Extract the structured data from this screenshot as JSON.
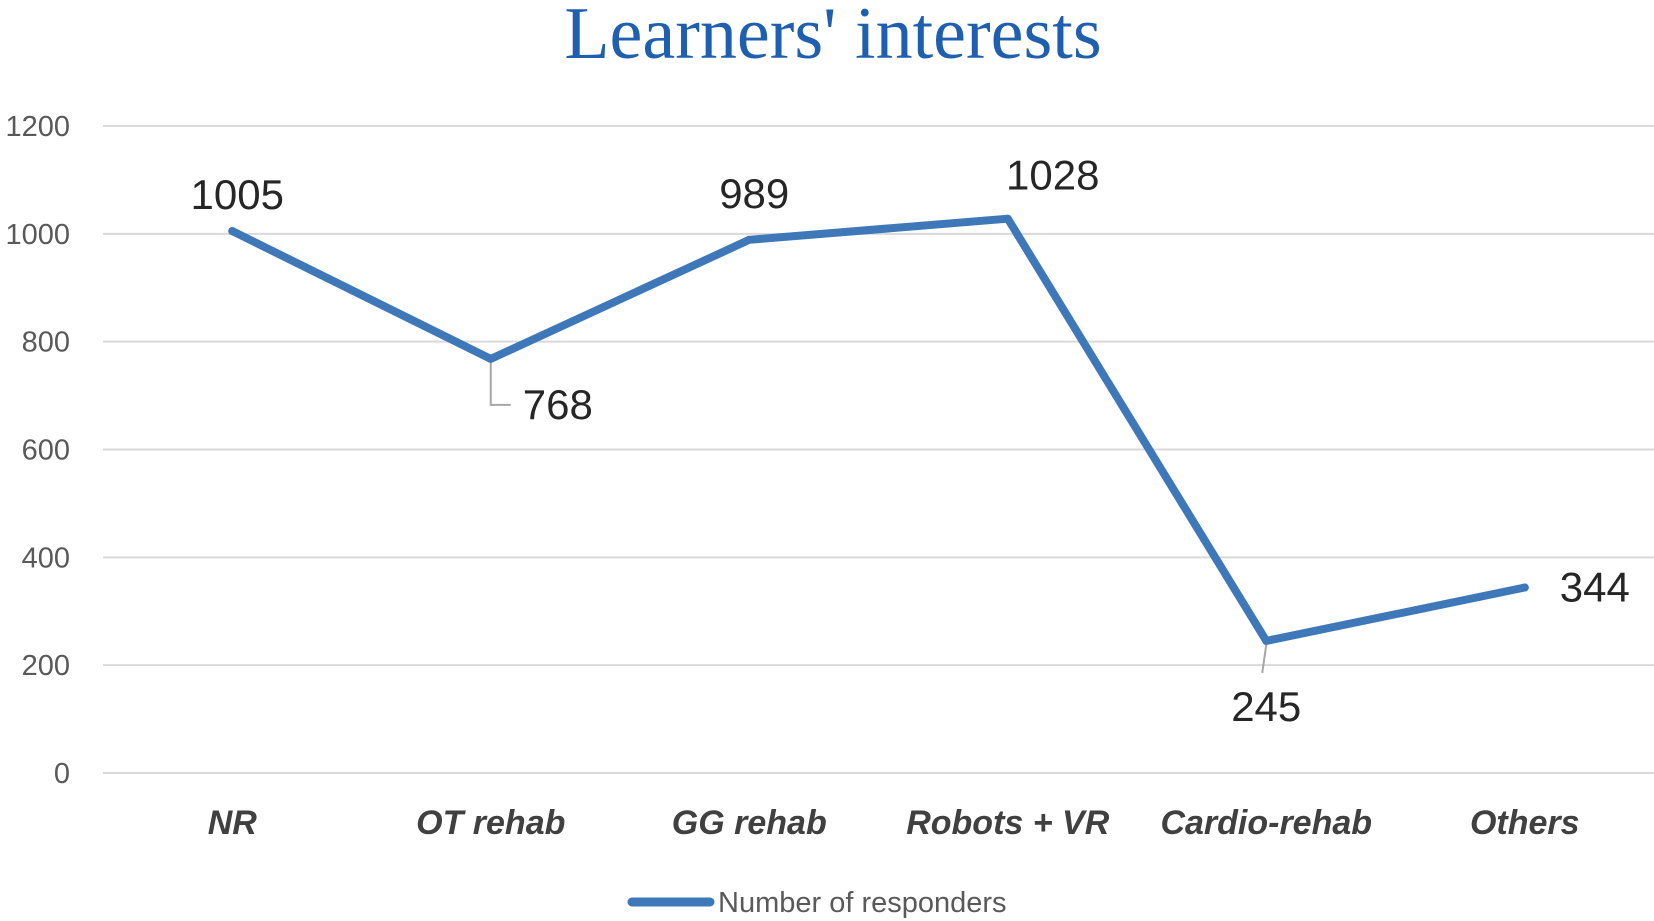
{
  "chart_data": {
    "type": "line",
    "title": "Learners' interests",
    "categories": [
      "NR",
      "OT rehab",
      "GG rehab",
      "Robots + VR",
      "Cardio-rehab",
      "Others"
    ],
    "series": [
      {
        "name": "Number of responders",
        "values": [
          1005,
          768,
          989,
          1028,
          245,
          344
        ]
      }
    ],
    "data_labels": [
      "1005",
      "768",
      "989",
      "1028",
      "245",
      "344"
    ],
    "yticks": [
      "0",
      "200",
      "400",
      "600",
      "800",
      "1000",
      "1200"
    ],
    "ylim": [
      0,
      1200
    ],
    "grid": true,
    "legend_position": "bottom",
    "colors": {
      "title": "#1F5FB0",
      "line": "#3F78B8",
      "grid": "#D9D9D9",
      "leader": "#A6A6A6"
    }
  }
}
